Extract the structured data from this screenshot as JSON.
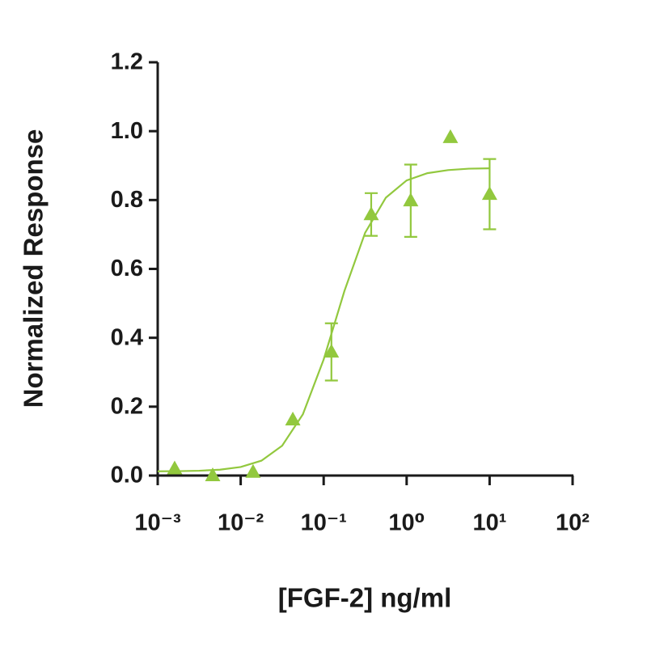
{
  "chart_data": {
    "type": "scatter",
    "x_label": "[FGF-2] ng/ml",
    "y_label": "Normalized Response",
    "x_log": true,
    "color": "#92c83e",
    "x": [
      0.0016,
      0.0046,
      0.0141,
      0.0425,
      0.124,
      0.374,
      1.12,
      3.37,
      10
    ],
    "values": [
      0.02,
      0.0,
      0.01,
      0.162,
      0.359,
      0.758,
      0.798,
      0.982,
      0.817
    ],
    "errors": [
      null,
      null,
      null,
      null,
      0.083,
      0.062,
      0.105,
      null,
      0.102
    ],
    "curve": {
      "x": [
        0.001,
        0.00178,
        0.00316,
        0.00562,
        0.01,
        0.0178,
        0.0316,
        0.0562,
        0.1,
        0.178,
        0.316,
        0.562,
        1,
        1.78,
        3.16,
        5.62,
        10
      ],
      "values": [
        0.0123,
        0.0128,
        0.014,
        0.0171,
        0.0247,
        0.0432,
        0.0866,
        0.178,
        0.337,
        0.536,
        0.705,
        0.807,
        0.857,
        0.878,
        0.887,
        0.891,
        0.892
      ]
    },
    "xlim": [
      0.001,
      100
    ],
    "xticks": [
      {
        "value": 0.001,
        "label": "10⁻³"
      },
      {
        "value": 0.01,
        "label": "10⁻²"
      },
      {
        "value": 0.1,
        "label": "10⁻¹"
      },
      {
        "value": 1,
        "label": "10⁰"
      },
      {
        "value": 10,
        "label": "10¹"
      },
      {
        "value": 100,
        "label": "10²"
      }
    ],
    "ylim": [
      0,
      1.2
    ],
    "yticks": [
      {
        "value": 0,
        "label": "0.0"
      },
      0.2,
      0.4,
      0.6,
      0.8,
      {
        "value": 1,
        "label": "1.0"
      },
      1.2
    ]
  }
}
